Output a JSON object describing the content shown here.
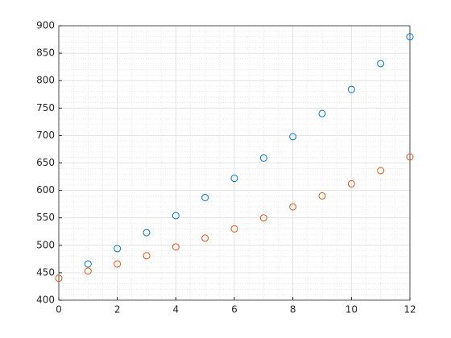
{
  "chart_data": {
    "type": "scatter",
    "xlim": [
      0,
      12
    ],
    "xticks": [
      0,
      2,
      4,
      6,
      8,
      10,
      12
    ],
    "ylim": [
      400,
      900
    ],
    "yticks": [
      400,
      450,
      500,
      550,
      600,
      650,
      700,
      750,
      800,
      850,
      900
    ],
    "grid": true,
    "minor_grid": true,
    "series": [
      {
        "color": "#0072bd",
        "x": [
          1,
          2,
          3,
          4,
          5,
          6,
          7,
          8,
          9,
          10,
          11,
          12
        ],
        "values": [
          466,
          494,
          523,
          554,
          587,
          622,
          659,
          698,
          740,
          784,
          831,
          880
        ]
      },
      {
        "color": "#d95319",
        "x": [
          0,
          1,
          2,
          3,
          4,
          5,
          6,
          7,
          8,
          9,
          10,
          11,
          12
        ],
        "values": [
          440,
          453,
          466,
          481,
          497,
          513,
          530,
          550,
          570,
          590,
          612,
          636,
          661
        ]
      }
    ]
  }
}
